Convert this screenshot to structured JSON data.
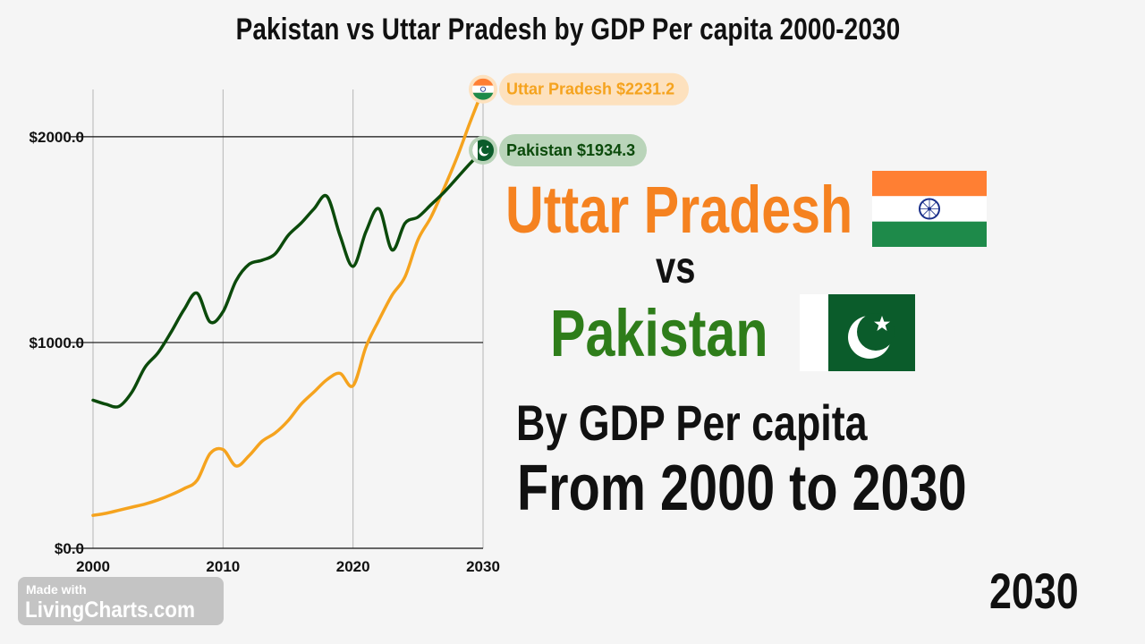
{
  "chart_data": {
    "type": "line",
    "title": "Pakistan vs Uttar Pradesh by GDP Per capita 2000-2030",
    "xlabel": "",
    "ylabel": "",
    "xlim": [
      2000,
      2030
    ],
    "ylim": [
      0,
      2230
    ],
    "x_ticks": [
      "2000",
      "2010",
      "2020",
      "2030"
    ],
    "y_ticks": [
      "$0.0",
      "$1000.0",
      "$2000.0"
    ],
    "grid": true,
    "series": [
      {
        "name": "Pakistan",
        "color": "#0b4a0b",
        "end_label": "Pakistan $1934.3",
        "x": [
          2000,
          2001,
          2002,
          2003,
          2004,
          2005,
          2006,
          2007,
          2008,
          2009,
          2010,
          2011,
          2012,
          2013,
          2014,
          2015,
          2016,
          2017,
          2018,
          2019,
          2020,
          2021,
          2022,
          2023,
          2024,
          2025,
          2026,
          2027,
          2028,
          2029,
          2030
        ],
        "values": [
          720,
          700,
          690,
          760,
          880,
          950,
          1050,
          1160,
          1240,
          1100,
          1150,
          1300,
          1380,
          1400,
          1430,
          1520,
          1580,
          1650,
          1710,
          1520,
          1370,
          1540,
          1650,
          1450,
          1580,
          1610,
          1670,
          1730,
          1800,
          1870,
          1934.3
        ]
      },
      {
        "name": "Uttar Pradesh",
        "color": "#f5a31e",
        "end_label": "Uttar Pradesh $2231.2",
        "x": [
          2000,
          2001,
          2002,
          2003,
          2004,
          2005,
          2006,
          2007,
          2008,
          2009,
          2010,
          2011,
          2012,
          2013,
          2014,
          2015,
          2016,
          2017,
          2018,
          2019,
          2020,
          2021,
          2022,
          2023,
          2024,
          2025,
          2026,
          2027,
          2028,
          2029,
          2030
        ],
        "values": [
          160,
          170,
          185,
          200,
          215,
          235,
          260,
          290,
          330,
          460,
          480,
          400,
          450,
          520,
          560,
          620,
          700,
          760,
          820,
          850,
          790,
          980,
          1110,
          1230,
          1320,
          1500,
          1610,
          1750,
          1900,
          2070,
          2231.2
        ]
      }
    ]
  },
  "headings": {
    "country_a": "Uttar Pradesh",
    "vs": "vs",
    "country_b": "Pakistan",
    "line1": "By GDP Per capita",
    "line2": "From 2000 to 2030"
  },
  "current_year": "2030",
  "watermark": {
    "line1": "Made with",
    "line2": "LivingCharts.com"
  },
  "colors": {
    "uttar_pradesh_orange": "#f58220",
    "pakistan_green": "#2e7d1a",
    "india_saffron": "#ff7f33",
    "india_green": "#1e8a4a",
    "pakistan_flag_green": "#0b5c2b"
  }
}
